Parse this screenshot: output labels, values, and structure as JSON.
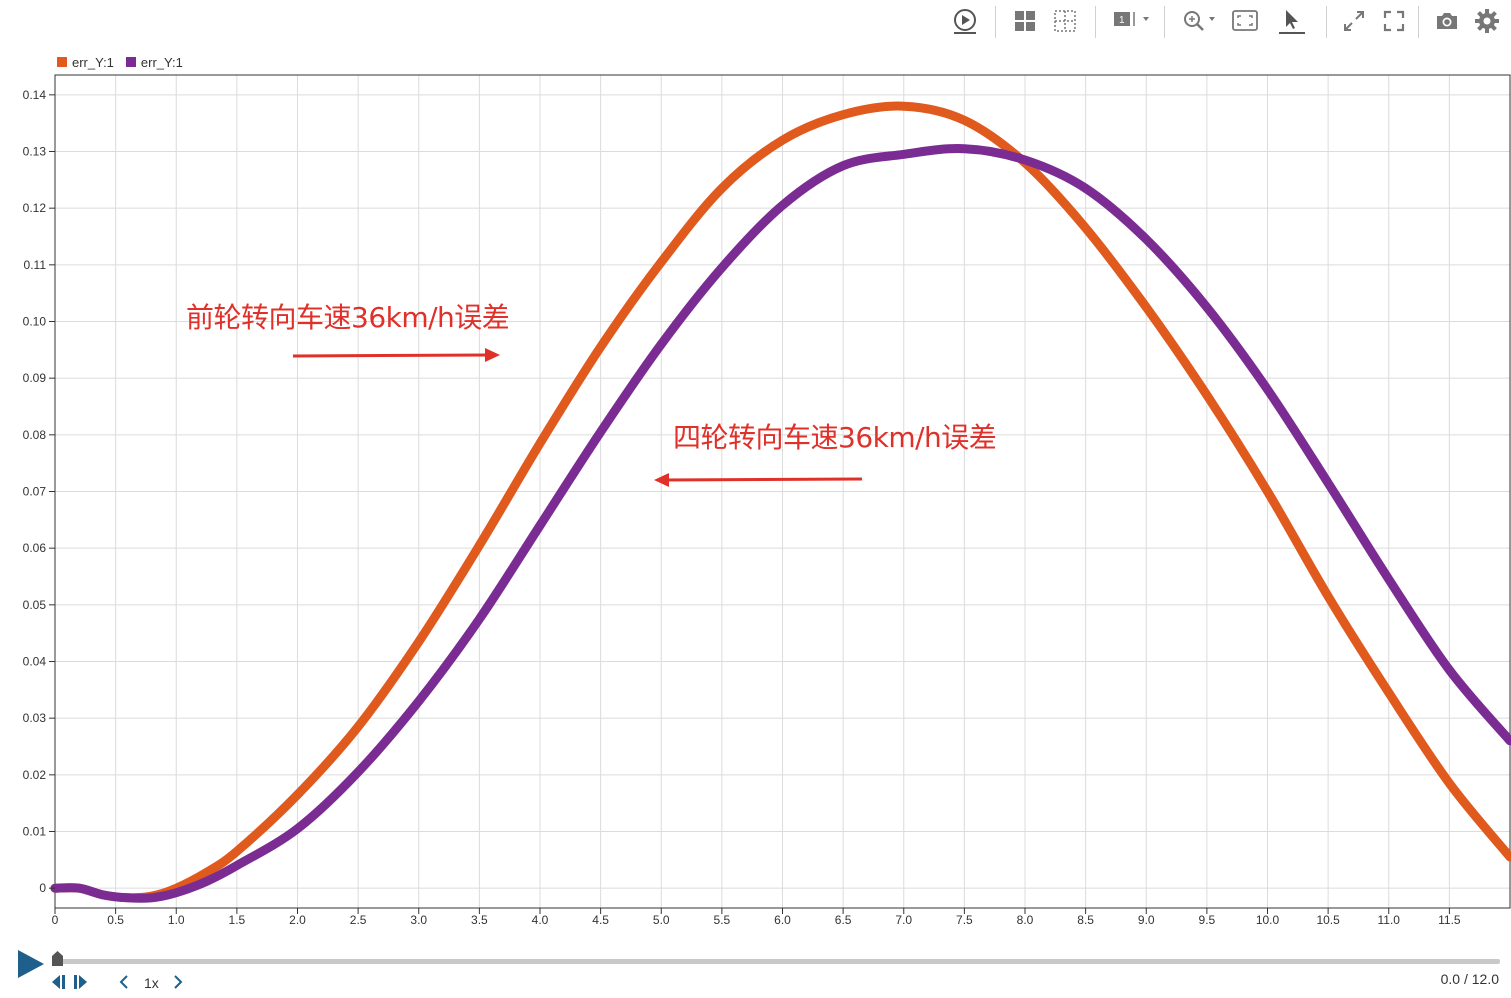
{
  "toolbar": {
    "icons": [
      "play-icon",
      "layout-grid-icon",
      "grid-lines-icon",
      "subplot-select-icon",
      "zoom-icon",
      "fit-to-view-icon",
      "cursor-icon",
      "expand-icon",
      "fullscreen-icon",
      "camera-icon",
      "settings-icon"
    ],
    "subplot_badge": "1"
  },
  "legend": [
    {
      "label": "err_Y:1",
      "color": "#e05a1e"
    },
    {
      "label": "err_Y:1",
      "color": "#7b2c93"
    }
  ],
  "annotations": {
    "front_label": "前轮转向车速36km/h误差",
    "four_label": "四轮转向车速36km/h误差"
  },
  "chart_data": {
    "type": "line",
    "xlim": [
      0,
      12.0
    ],
    "ylim": [
      -0.0035,
      0.1435
    ],
    "xticks": [
      0,
      0.5,
      1.0,
      1.5,
      2.0,
      2.5,
      3.0,
      3.5,
      4.0,
      4.5,
      5.0,
      5.5,
      6.0,
      6.5,
      7.0,
      7.5,
      8.0,
      8.5,
      9.0,
      9.5,
      10.0,
      10.5,
      11.0,
      11.5
    ],
    "xtick_labels": [
      "0",
      "0.5",
      "1.0",
      "1.5",
      "2.0",
      "2.5",
      "3.0",
      "3.5",
      "4.0",
      "4.5",
      "5.0",
      "5.5",
      "6.0",
      "6.5",
      "7.0",
      "7.5",
      "8.0",
      "8.5",
      "9.0",
      "9.5",
      "10.0",
      "10.5",
      "11.0",
      "11.5"
    ],
    "yticks": [
      0,
      0.01,
      0.02,
      0.03,
      0.04,
      0.05,
      0.06,
      0.07,
      0.08,
      0.09,
      0.1,
      0.11,
      0.12,
      0.13,
      0.14
    ],
    "ytick_labels": [
      "0",
      "0.01",
      "0.02",
      "0.03",
      "0.04",
      "0.05",
      "0.06",
      "0.07",
      "0.08",
      "0.09",
      "0.10",
      "0.11",
      "0.12",
      "0.13",
      "0.14"
    ],
    "grid": true,
    "legend_position": "top-left",
    "series": [
      {
        "name": "err_Y:1",
        "color": "#e05a1e",
        "x": [
          0,
          0.2,
          0.4,
          0.6,
          0.8,
          1.0,
          1.25,
          1.5,
          2.0,
          2.5,
          3.0,
          3.5,
          4.0,
          4.5,
          5.0,
          5.5,
          6.0,
          6.5,
          7.0,
          7.5,
          8.0,
          8.5,
          9.0,
          9.5,
          10.0,
          10.5,
          11.0,
          11.5,
          12.0
        ],
        "y": [
          0.0,
          0.0,
          -0.0012,
          -0.0017,
          -0.0014,
          0.0,
          0.0028,
          0.0065,
          0.0165,
          0.0285,
          0.0435,
          0.0605,
          0.0785,
          0.0955,
          0.1105,
          0.1235,
          0.132,
          0.1365,
          0.138,
          0.1355,
          0.128,
          0.1165,
          0.1025,
          0.087,
          0.07,
          0.0515,
          0.0345,
          0.0185,
          0.0055
        ]
      },
      {
        "name": "err_Y:1",
        "color": "#7b2c93",
        "x": [
          0,
          0.2,
          0.4,
          0.6,
          0.8,
          1.0,
          1.25,
          1.5,
          2.0,
          2.5,
          3.0,
          3.5,
          4.0,
          4.5,
          5.0,
          5.5,
          6.0,
          6.5,
          7.0,
          7.5,
          8.0,
          8.5,
          9.0,
          9.5,
          10.0,
          10.5,
          11.0,
          11.5,
          12.0
        ],
        "y": [
          0.0,
          0.0,
          -0.0012,
          -0.0017,
          -0.0017,
          -0.0008,
          0.0012,
          0.004,
          0.0105,
          0.0205,
          0.033,
          0.0475,
          0.064,
          0.0805,
          0.096,
          0.1095,
          0.1205,
          0.1275,
          0.1295,
          0.1305,
          0.1285,
          0.1235,
          0.1145,
          0.1025,
          0.088,
          0.0715,
          0.0545,
          0.0385,
          0.026
        ]
      }
    ]
  },
  "playback": {
    "speed": "1x",
    "time": "0.0 / 12.0",
    "progress": 0.0
  }
}
